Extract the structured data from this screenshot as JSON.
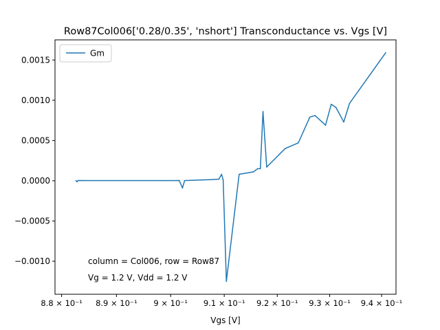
{
  "chart_data": {
    "type": "line",
    "title": "Row87Col006['0.28/0.35', 'nshort'] Transconductance vs. Vgs [V]",
    "xlabel": "Vgs [V]",
    "ylabel": "",
    "x_scale": "log",
    "xlim": [
      0.8788,
      0.9428
    ],
    "ylim": [
      -0.00141,
      0.00175
    ],
    "grid": false,
    "legend_position": "top-left",
    "x_ticks": [
      {
        "value": 0.88,
        "label": "8.8 × 10⁻¹"
      },
      {
        "value": 0.89,
        "label": "8.9 × 10⁻¹"
      },
      {
        "value": 0.9,
        "label": "9 × 10⁻¹"
      },
      {
        "value": 0.91,
        "label": "9.1 × 10⁻¹"
      },
      {
        "value": 0.92,
        "label": "9.2 × 10⁻¹"
      },
      {
        "value": 0.93,
        "label": "9.3 × 10⁻¹"
      },
      {
        "value": 0.94,
        "label": "9.4 × 10⁻¹"
      }
    ],
    "y_ticks": [
      {
        "value": 0.0015,
        "label": "0.0015"
      },
      {
        "value": 0.001,
        "label": "0.0010"
      },
      {
        "value": 0.0005,
        "label": "0.0005"
      },
      {
        "value": 0.0,
        "label": "0.0000"
      },
      {
        "value": -0.0005,
        "label": "−0.0005"
      },
      {
        "value": -0.001,
        "label": "−0.0010"
      }
    ],
    "series": [
      {
        "name": "Gm",
        "color": "#1f77b4",
        "x": [
          0.8826,
          0.8828,
          0.883,
          0.899,
          0.9016,
          0.9022,
          0.9026,
          0.908,
          0.909,
          0.9095,
          0.9098,
          0.9104,
          0.9128,
          0.9155,
          0.9163,
          0.9168,
          0.9173,
          0.918,
          0.9215,
          0.924,
          0.9262,
          0.9272,
          0.9292,
          0.9303,
          0.9312,
          0.9327,
          0.9338,
          0.9408
        ],
        "y": [
          2e-06,
          -1.2e-05,
          3e-06,
          2e-06,
          3e-06,
          -9e-05,
          2e-06,
          1.5e-05,
          2e-05,
          8e-05,
          1e-05,
          -0.00125,
          8e-05,
          0.00011,
          0.00015,
          0.00015,
          0.00086,
          0.00017,
          0.0004,
          0.00047,
          0.00079,
          0.00081,
          0.00069,
          0.00095,
          0.00091,
          0.00073,
          0.00096,
          0.00159
        ]
      }
    ],
    "annotations": [
      "column = Col006, row = Row87",
      "Vg = 1.2 V, Vdd = 1.2 V"
    ]
  }
}
